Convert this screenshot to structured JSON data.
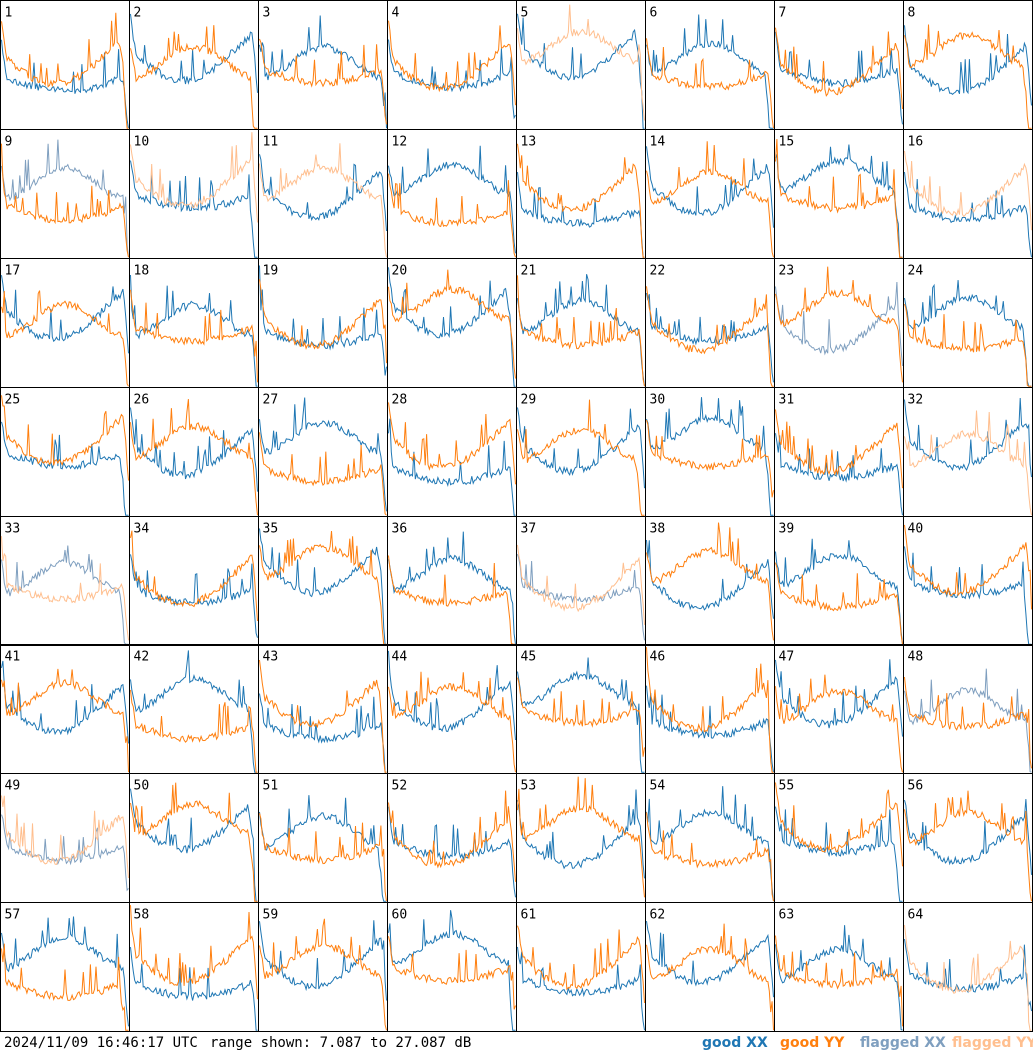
{
  "chart_data": {
    "type": "line",
    "layout": "8x8 small multiples",
    "panels": [
      "1",
      "2",
      "3",
      "4",
      "5",
      "6",
      "7",
      "8",
      "9",
      "10",
      "11",
      "12",
      "13",
      "14",
      "15",
      "16",
      "17",
      "18",
      "19",
      "20",
      "21",
      "22",
      "23",
      "24",
      "25",
      "26",
      "27",
      "28",
      "29",
      "30",
      "31",
      "32",
      "33",
      "34",
      "35",
      "36",
      "37",
      "38",
      "39",
      "40",
      "41",
      "42",
      "43",
      "44",
      "45",
      "46",
      "47",
      "48",
      "49",
      "50",
      "51",
      "52",
      "53",
      "54",
      "55",
      "56",
      "57",
      "58",
      "59",
      "60",
      "61",
      "62",
      "63",
      "64"
    ],
    "ylim": [
      7.087,
      27.087
    ],
    "y_unit": "dB",
    "series": [
      {
        "name": "good XX",
        "color": "#1f77b4"
      },
      {
        "name": "good YY",
        "color": "#ff7f0e"
      },
      {
        "name": "flagged XX",
        "color": "#7f9fbf"
      },
      {
        "name": "flagged YY",
        "color": "#ffbf8f"
      }
    ],
    "flagged_xx_panels": [
      9,
      23,
      33,
      37,
      48,
      49
    ],
    "flagged_yy_panels": [
      5,
      10,
      11,
      16,
      32,
      33,
      37,
      49,
      64
    ],
    "grid": false
  },
  "footer": {
    "timestamp": "2024/11/09 16:46:17 UTC",
    "range_text": "range shown: 7.087 to 27.087 dB"
  },
  "legend": {
    "good_xx": "good XX",
    "good_yy": "good YY",
    "flagged_xx": "flagged XX",
    "flagged_yy": "flagged YY"
  }
}
